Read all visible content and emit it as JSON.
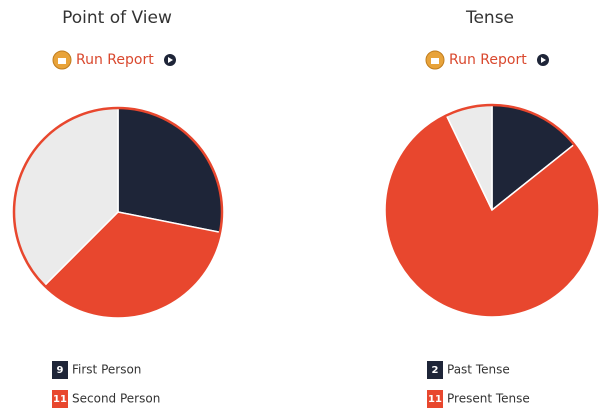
{
  "chart_data": [
    {
      "type": "pie",
      "title": "Point of View",
      "action": "Run Report",
      "categories": [
        "First Person",
        "Second Person",
        null
      ],
      "values": [
        9,
        11,
        12
      ],
      "colors": [
        "#1e2538",
        "#e8472e",
        "#ebebeb"
      ]
    },
    {
      "type": "pie",
      "title": "Tense",
      "action": "Run Report",
      "categories": [
        "Past Tense",
        "Present Tense",
        null
      ],
      "values": [
        2,
        11,
        1
      ],
      "colors": [
        "#1e2538",
        "#e8472e",
        "#ebebeb"
      ]
    }
  ]
}
